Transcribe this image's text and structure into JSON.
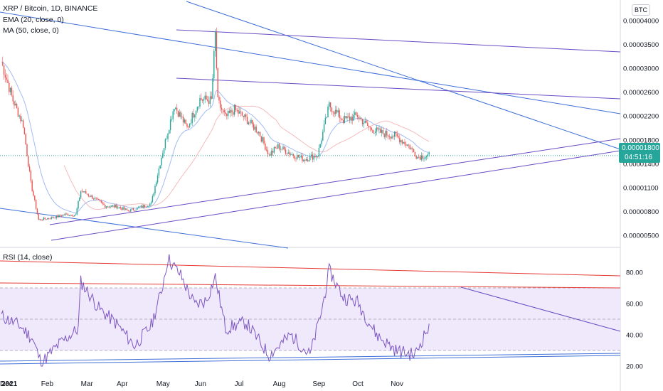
{
  "header": {
    "symbol_line": "XRP / Bitcoin, 1D, BINANCE",
    "ema_line": "EMA (20, close, 0)",
    "ma_line": "MA (50, close, 0)",
    "currency": "BTC"
  },
  "last_price": {
    "value": "0.00001800",
    "countdown": "04:51:16"
  },
  "rsi": {
    "label": "RSI (14, close)"
  },
  "colors": {
    "up": "#26a69a",
    "down": "#ef5350",
    "ema": "#7b9cf0",
    "ma": "#f0a0a0",
    "trend_blue": "#3f6fd8",
    "trend_purple": "#6a4cc4",
    "rsi_line": "#7e57c2",
    "rsi_band": "#efe9fb",
    "red_line": "#e53935"
  },
  "chart_data": [
    {
      "type": "candlestick",
      "title": "XRP / Bitcoin, 1D, BINANCE",
      "y_ticks": [
        "0.00004000",
        "0.00003500",
        "0.00003000",
        "0.00002600",
        "0.00002200",
        "0.00001800",
        "0.00001400",
        "0.00001100",
        "0.00000800",
        "0.00000500"
      ],
      "x_ticks": [
        "Dec",
        "2021",
        "Feb",
        "Mar",
        "Apr",
        "May",
        "Jun",
        "Jul",
        "Aug",
        "Sep",
        "Oct",
        "Nov"
      ],
      "series": [
        {
          "name": "XRP / Bitcoin",
          "close": [
            {
              "x": "2020-12-01",
              "y": 3.33e-05
            },
            {
              "x": "2020-12-10",
              "y": 2.7e-05
            },
            {
              "x": "2020-12-18",
              "y": 2.3e-05
            },
            {
              "x": "2020-12-24",
              "y": 1.35e-05
            },
            {
              "x": "2020-12-30",
              "y": 7.5e-06
            },
            {
              "x": "2021-01-10",
              "y": 7.9e-06
            },
            {
              "x": "2021-01-20",
              "y": 8.4e-06
            },
            {
              "x": "2021-01-28",
              "y": 8.3e-06
            },
            {
              "x": "2021-02-01",
              "y": 1.23e-05
            },
            {
              "x": "2021-02-10",
              "y": 1.12e-05
            },
            {
              "x": "2021-02-20",
              "y": 9.8e-06
            },
            {
              "x": "2021-03-01",
              "y": 9.7e-06
            },
            {
              "x": "2021-03-10",
              "y": 9e-06
            },
            {
              "x": "2021-03-20",
              "y": 9.6e-06
            },
            {
              "x": "2021-03-28",
              "y": 1.02e-05
            },
            {
              "x": "2021-04-05",
              "y": 1.78e-05
            },
            {
              "x": "2021-04-15",
              "y": 2.62e-05
            },
            {
              "x": "2021-04-25",
              "y": 2.25e-05
            },
            {
              "x": "2021-05-05",
              "y": 2.72e-05
            },
            {
              "x": "2021-05-14",
              "y": 2.7e-05
            },
            {
              "x": "2021-05-17",
              "y": 3.78e-05
            },
            {
              "x": "2021-05-19",
              "y": 2.68e-05
            },
            {
              "x": "2021-05-25",
              "y": 2.42e-05
            },
            {
              "x": "2021-06-01",
              "y": 2.55e-05
            },
            {
              "x": "2021-06-10",
              "y": 2.4e-05
            },
            {
              "x": "2021-06-20",
              "y": 2.18e-05
            },
            {
              "x": "2021-06-28",
              "y": 1.81e-05
            },
            {
              "x": "2021-07-05",
              "y": 1.95e-05
            },
            {
              "x": "2021-07-15",
              "y": 1.83e-05
            },
            {
              "x": "2021-07-25",
              "y": 1.74e-05
            },
            {
              "x": "2021-08-05",
              "y": 1.81e-05
            },
            {
              "x": "2021-08-10",
              "y": 2.26e-05
            },
            {
              "x": "2021-08-14",
              "y": 2.62e-05
            },
            {
              "x": "2021-08-25",
              "y": 2.38e-05
            },
            {
              "x": "2021-09-05",
              "y": 2.45e-05
            },
            {
              "x": "2021-09-15",
              "y": 2.24e-05
            },
            {
              "x": "2021-09-25",
              "y": 2.16e-05
            },
            {
              "x": "2021-10-05",
              "y": 2.12e-05
            },
            {
              "x": "2021-10-15",
              "y": 1.96e-05
            },
            {
              "x": "2021-10-22",
              "y": 1.78e-05
            },
            {
              "x": "2021-10-29",
              "y": 1.8e-05
            }
          ]
        }
      ]
    },
    {
      "type": "line",
      "title": "RSI (14, close)",
      "y_ticks": [
        "80.00",
        "60.00",
        "40.00",
        "20.00"
      ],
      "ylim": [
        20,
        90
      ],
      "series": [
        {
          "name": "RSI (14, close)",
          "values": [
            {
              "x": "2020-12-01",
              "y": 52
            },
            {
              "x": "2020-12-15",
              "y": 46
            },
            {
              "x": "2020-12-25",
              "y": 38
            },
            {
              "x": "2021-01-01",
              "y": 22
            },
            {
              "x": "2021-01-15",
              "y": 34
            },
            {
              "x": "2021-01-30",
              "y": 44
            },
            {
              "x": "2021-02-01",
              "y": 74
            },
            {
              "x": "2021-02-15",
              "y": 57
            },
            {
              "x": "2021-03-01",
              "y": 47
            },
            {
              "x": "2021-03-15",
              "y": 33
            },
            {
              "x": "2021-03-28",
              "y": 46
            },
            {
              "x": "2021-04-05",
              "y": 68
            },
            {
              "x": "2021-04-10",
              "y": 89
            },
            {
              "x": "2021-04-20",
              "y": 78
            },
            {
              "x": "2021-05-01",
              "y": 59
            },
            {
              "x": "2021-05-10",
              "y": 62
            },
            {
              "x": "2021-05-17",
              "y": 77
            },
            {
              "x": "2021-05-25",
              "y": 44
            },
            {
              "x": "2021-06-10",
              "y": 48
            },
            {
              "x": "2021-06-28",
              "y": 27
            },
            {
              "x": "2021-07-15",
              "y": 40
            },
            {
              "x": "2021-07-30",
              "y": 27
            },
            {
              "x": "2021-08-08",
              "y": 55
            },
            {
              "x": "2021-08-14",
              "y": 81
            },
            {
              "x": "2021-08-25",
              "y": 64
            },
            {
              "x": "2021-09-05",
              "y": 61
            },
            {
              "x": "2021-09-20",
              "y": 40
            },
            {
              "x": "2021-10-05",
              "y": 30
            },
            {
              "x": "2021-10-20",
              "y": 27
            },
            {
              "x": "2021-10-29",
              "y": 43
            }
          ]
        }
      ]
    }
  ]
}
